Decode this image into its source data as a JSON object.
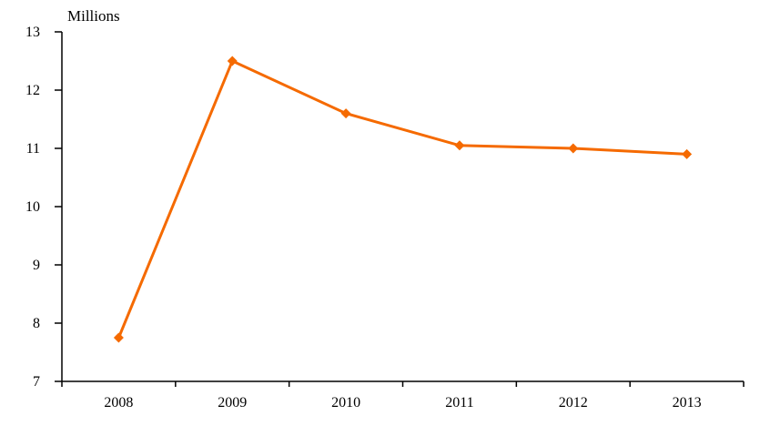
{
  "chart": {
    "unit_label": "Millions"
  },
  "chart_data": {
    "type": "line",
    "title": "Millions",
    "categories": [
      "2008",
      "2009",
      "2010",
      "2011",
      "2012",
      "2013"
    ],
    "series": [
      {
        "name": "Millions",
        "values": [
          7.75,
          12.5,
          11.6,
          11.05,
          11.0,
          10.9
        ]
      }
    ],
    "xlabel": "",
    "ylabel": "Millions",
    "ylim": [
      7,
      13
    ],
    "yticks": [
      7,
      8,
      9,
      10,
      11,
      12,
      13
    ],
    "grid": false,
    "legend": false,
    "marker": "diamond",
    "line_color": "#F56A00",
    "axis_color": "#000000",
    "background_color": "#FFFFFF"
  }
}
